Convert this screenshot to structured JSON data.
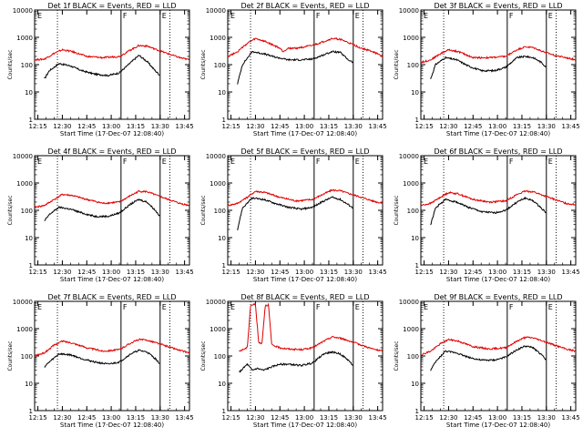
{
  "figure": {
    "x_axis_label": "Start Time (17-Dec-07 12:08:40)",
    "y_axis_label": "Counts/sec",
    "x_tick_labels": [
      "12:15",
      "12:30",
      "12:45",
      "13:00",
      "13:15",
      "13:30",
      "13:45"
    ],
    "y_tick_labels": [
      "1",
      "10",
      "100",
      "1000",
      "10000"
    ]
  },
  "colors": {
    "events": "#000000",
    "lld": "#e00000",
    "axes": "#000000"
  },
  "chart_data": [
    {
      "type": "line",
      "title": "Det 1f BLACK = Events, RED = LLD",
      "y_scale": "log",
      "ylim": [
        1,
        10000
      ],
      "xlim": [
        "12:13",
        "13:48"
      ],
      "markers": {
        "dotted": [
          "12:27",
          "13:36"
        ],
        "solid": [
          "13:06",
          "13:30"
        ],
        "letters": [
          "E",
          "F",
          "E"
        ]
      },
      "series": [
        {
          "name": "Events",
          "x": [
            "12:19",
            "12:22",
            "12:28",
            "12:35",
            "12:42",
            "12:50",
            "12:58",
            "13:05",
            "13:12",
            "13:17",
            "13:22",
            "13:27",
            "13:30"
          ],
          "y": [
            30,
            60,
            110,
            90,
            60,
            45,
            40,
            50,
            120,
            220,
            130,
            60,
            40
          ]
        },
        {
          "name": "LLD",
          "x": [
            "12:13",
            "12:19",
            "12:25",
            "12:30",
            "12:36",
            "12:45",
            "12:55",
            "13:05",
            "13:12",
            "13:17",
            "13:22",
            "13:28",
            "13:35",
            "13:42",
            "13:48"
          ],
          "y": [
            150,
            160,
            260,
            350,
            300,
            200,
            180,
            200,
            350,
            500,
            480,
            350,
            250,
            180,
            150
          ]
        }
      ]
    },
    {
      "type": "line",
      "title": "Det 2f BLACK = Events, RED = LLD",
      "y_scale": "log",
      "ylim": [
        1,
        10000
      ],
      "xlim": [
        "12:13",
        "13:48"
      ],
      "markers": {
        "dotted": [
          "12:27",
          "13:36"
        ],
        "solid": [
          "13:06",
          "13:30"
        ],
        "letters": [
          "E",
          "F",
          "E"
        ]
      },
      "series": [
        {
          "name": "Events",
          "x": [
            "12:19",
            "12:22",
            "12:28",
            "12:35",
            "12:42",
            "12:50",
            "12:58",
            "13:05",
            "13:12",
            "13:17",
            "13:22",
            "13:27",
            "13:30"
          ],
          "y": [
            20,
            100,
            300,
            250,
            190,
            150,
            150,
            160,
            230,
            300,
            280,
            150,
            120
          ]
        },
        {
          "name": "LLD",
          "x": [
            "12:13",
            "12:19",
            "12:25",
            "12:30",
            "12:36",
            "12:45",
            "12:47",
            "12:50",
            "12:55",
            "13:05",
            "13:12",
            "13:17",
            "13:22",
            "13:28",
            "13:35",
            "13:42",
            "13:48"
          ],
          "y": [
            200,
            300,
            600,
            900,
            700,
            400,
            300,
            400,
            400,
            500,
            700,
            900,
            850,
            600,
            400,
            300,
            200
          ]
        }
      ]
    },
    {
      "type": "line",
      "title": "Det 3f BLACK = Events, RED = LLD",
      "y_scale": "log",
      "ylim": [
        1,
        10000
      ],
      "xlim": [
        "12:13",
        "13:48"
      ],
      "markers": {
        "dotted": [
          "12:27",
          "13:36"
        ],
        "solid": [
          "13:06",
          "13:30"
        ],
        "letters": [
          "E",
          "F",
          "E"
        ]
      },
      "series": [
        {
          "name": "Events",
          "x": [
            "12:19",
            "12:22",
            "12:28",
            "12:35",
            "12:42",
            "12:50",
            "12:58",
            "13:05",
            "13:12",
            "13:17",
            "13:22",
            "13:27",
            "13:30"
          ],
          "y": [
            30,
            100,
            180,
            150,
            90,
            60,
            60,
            80,
            180,
            200,
            180,
            120,
            80
          ]
        },
        {
          "name": "LLD",
          "x": [
            "12:13",
            "12:19",
            "12:25",
            "12:30",
            "12:36",
            "12:45",
            "12:55",
            "13:05",
            "13:12",
            "13:17",
            "13:22",
            "13:28",
            "13:35",
            "13:42",
            "13:48"
          ],
          "y": [
            120,
            150,
            250,
            350,
            300,
            180,
            180,
            200,
            350,
            450,
            420,
            300,
            220,
            180,
            150
          ]
        }
      ]
    },
    {
      "type": "line",
      "title": "Det 4f BLACK = Events, RED = LLD",
      "y_scale": "log",
      "ylim": [
        1,
        10000
      ],
      "xlim": [
        "12:13",
        "13:48"
      ],
      "markers": {
        "dotted": [
          "12:27",
          "13:36"
        ],
        "solid": [
          "13:06",
          "13:30"
        ],
        "letters": [
          "E",
          "F",
          "E"
        ]
      },
      "series": [
        {
          "name": "Events",
          "x": [
            "12:19",
            "12:22",
            "12:28",
            "12:35",
            "12:42",
            "12:50",
            "12:58",
            "13:05",
            "13:12",
            "13:17",
            "13:22",
            "13:27",
            "13:30"
          ],
          "y": [
            40,
            70,
            130,
            110,
            80,
            60,
            60,
            80,
            170,
            250,
            200,
            100,
            60
          ]
        },
        {
          "name": "LLD",
          "x": [
            "12:13",
            "12:19",
            "12:25",
            "12:30",
            "12:36",
            "12:45",
            "12:55",
            "13:05",
            "13:12",
            "13:17",
            "13:22",
            "13:28",
            "13:35",
            "13:42",
            "13:48"
          ],
          "y": [
            130,
            150,
            250,
            380,
            350,
            250,
            180,
            200,
            350,
            500,
            480,
            350,
            250,
            180,
            150
          ]
        }
      ]
    },
    {
      "type": "line",
      "title": "Det 5f BLACK = Events, RED = LLD",
      "y_scale": "log",
      "ylim": [
        1,
        10000
      ],
      "xlim": [
        "12:13",
        "13:48"
      ],
      "markers": {
        "dotted": [
          "12:27",
          "13:36"
        ],
        "solid": [
          "13:06",
          "13:30"
        ],
        "letters": [
          "E",
          "F",
          "E"
        ]
      },
      "series": [
        {
          "name": "Events",
          "x": [
            "12:19",
            "12:22",
            "12:28",
            "12:35",
            "12:42",
            "12:50",
            "12:58",
            "13:05",
            "13:12",
            "13:17",
            "13:22",
            "13:27",
            "13:30"
          ],
          "y": [
            20,
            120,
            280,
            250,
            180,
            130,
            110,
            130,
            220,
            300,
            250,
            160,
            120
          ]
        },
        {
          "name": "LLD",
          "x": [
            "12:13",
            "12:19",
            "12:25",
            "12:30",
            "12:36",
            "12:45",
            "12:55",
            "13:05",
            "13:12",
            "13:17",
            "13:22",
            "13:28",
            "13:35",
            "13:42",
            "13:48"
          ],
          "y": [
            150,
            180,
            300,
            500,
            450,
            300,
            220,
            250,
            400,
            550,
            520,
            400,
            300,
            220,
            180
          ]
        }
      ]
    },
    {
      "type": "line",
      "title": "Det 6f BLACK = Events, RED = LLD",
      "y_scale": "log",
      "ylim": [
        1,
        10000
      ],
      "xlim": [
        "12:13",
        "13:48"
      ],
      "markers": {
        "dotted": [
          "12:27",
          "13:36"
        ],
        "solid": [
          "13:06",
          "13:30"
        ],
        "letters": [
          "E",
          "F",
          "E"
        ]
      },
      "series": [
        {
          "name": "Events",
          "x": [
            "12:19",
            "12:22",
            "12:28",
            "12:35",
            "12:42",
            "12:50",
            "12:58",
            "13:05",
            "13:12",
            "13:17",
            "13:22",
            "13:27",
            "13:30"
          ],
          "y": [
            30,
            120,
            250,
            200,
            130,
            90,
            80,
            100,
            200,
            280,
            220,
            120,
            80
          ]
        },
        {
          "name": "LLD",
          "x": [
            "12:13",
            "12:19",
            "12:25",
            "12:30",
            "12:36",
            "12:45",
            "12:55",
            "13:05",
            "13:12",
            "13:17",
            "13:22",
            "13:28",
            "13:35",
            "13:42",
            "13:48"
          ],
          "y": [
            150,
            180,
            300,
            450,
            400,
            250,
            200,
            220,
            380,
            500,
            480,
            350,
            250,
            180,
            160
          ]
        }
      ]
    },
    {
      "type": "line",
      "title": "Det 7f BLACK = Events, RED = LLD",
      "y_scale": "log",
      "ylim": [
        1,
        10000
      ],
      "xlim": [
        "12:13",
        "13:48"
      ],
      "markers": {
        "dotted": [
          "12:27",
          "13:36"
        ],
        "solid": [
          "13:06",
          "13:30"
        ],
        "letters": [
          "E",
          "F",
          "E"
        ]
      },
      "series": [
        {
          "name": "Events",
          "x": [
            "12:19",
            "12:22",
            "12:28",
            "12:35",
            "12:42",
            "12:50",
            "12:58",
            "13:05",
            "13:12",
            "13:17",
            "13:22",
            "13:27",
            "13:30"
          ],
          "y": [
            40,
            60,
            120,
            110,
            80,
            60,
            50,
            60,
            120,
            160,
            140,
            80,
            50
          ]
        },
        {
          "name": "LLD",
          "x": [
            "12:13",
            "12:19",
            "12:25",
            "12:30",
            "12:36",
            "12:45",
            "12:55",
            "13:05",
            "13:12",
            "13:17",
            "13:22",
            "13:28",
            "13:35",
            "13:42",
            "13:48"
          ],
          "y": [
            100,
            130,
            250,
            350,
            300,
            200,
            150,
            170,
            300,
            400,
            380,
            300,
            220,
            160,
            130
          ]
        }
      ]
    },
    {
      "type": "line",
      "title": "Det 8f BLACK = Events, RED = LLD",
      "y_scale": "log",
      "ylim": [
        1,
        10000
      ],
      "xlim": [
        "12:13",
        "13:48"
      ],
      "markers": {
        "dotted": [
          "12:27",
          "13:36"
        ],
        "solid": [
          "13:06",
          "13:30"
        ],
        "letters": [
          "E",
          "F",
          "E"
        ]
      },
      "series": [
        {
          "name": "Events",
          "x": [
            "12:20",
            "12:25",
            "12:28",
            "12:31",
            "12:35",
            "12:40",
            "12:45",
            "12:50",
            "12:58",
            "13:05",
            "13:12",
            "13:17",
            "13:22",
            "13:27",
            "13:30"
          ],
          "y": [
            25,
            50,
            30,
            35,
            30,
            40,
            50,
            50,
            45,
            55,
            120,
            140,
            120,
            70,
            45
          ]
        },
        {
          "name": "LLD",
          "x": [
            "12:20",
            "12:25",
            "12:27",
            "12:30",
            "12:32",
            "12:34",
            "12:36",
            "12:38",
            "12:40",
            "12:45",
            "12:50",
            "12:58",
            "13:05",
            "13:12",
            "13:17",
            "13:22",
            "13:28",
            "13:35",
            "13:42",
            "13:48"
          ],
          "y": [
            150,
            200,
            7000,
            8000,
            300,
            300,
            7000,
            7500,
            250,
            200,
            180,
            170,
            200,
            350,
            500,
            450,
            350,
            250,
            180,
            150
          ]
        }
      ]
    },
    {
      "type": "line",
      "title": "Det 9f BLACK = Events, RED = LLD",
      "y_scale": "log",
      "ylim": [
        1,
        10000
      ],
      "xlim": [
        "12:13",
        "13:48"
      ],
      "markers": {
        "dotted": [
          "12:27",
          "13:36"
        ],
        "solid": [
          "13:06",
          "13:30"
        ],
        "letters": [
          "E",
          "F",
          "E"
        ]
      },
      "series": [
        {
          "name": "Events",
          "x": [
            "12:19",
            "12:22",
            "12:28",
            "12:35",
            "12:42",
            "12:50",
            "12:58",
            "13:05",
            "13:12",
            "13:17",
            "13:22",
            "13:27",
            "13:30"
          ],
          "y": [
            30,
            60,
            150,
            130,
            90,
            70,
            70,
            90,
            170,
            230,
            200,
            110,
            70
          ]
        },
        {
          "name": "LLD",
          "x": [
            "12:13",
            "12:19",
            "12:25",
            "12:30",
            "12:36",
            "12:45",
            "12:55",
            "13:05",
            "13:12",
            "13:17",
            "13:22",
            "13:28",
            "13:35",
            "13:42",
            "13:48"
          ],
          "y": [
            110,
            150,
            280,
            400,
            350,
            220,
            180,
            200,
            350,
            480,
            460,
            350,
            250,
            180,
            150
          ]
        }
      ]
    }
  ]
}
